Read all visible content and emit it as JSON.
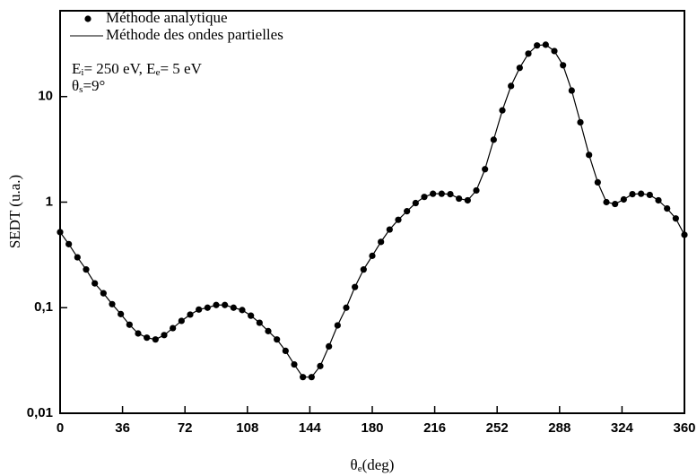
{
  "chart_data": {
    "type": "line",
    "x_label": [
      "θ",
      "e",
      "(deg)"
    ],
    "y_label": "SEDT (u.a.)",
    "annotations": [
      [
        "E",
        "i",
        "= 250 eV, E",
        "e",
        "= 5 eV"
      ],
      [
        "θ",
        "s",
        "=9°"
      ]
    ],
    "log_y": true,
    "x": [
      0,
      5,
      10,
      15,
      20,
      25,
      30,
      35,
      40,
      45,
      50,
      55,
      60,
      65,
      70,
      75,
      80,
      85,
      90,
      95,
      100,
      105,
      110,
      115,
      120,
      125,
      130,
      135,
      140,
      145,
      150,
      155,
      160,
      165,
      170,
      175,
      180,
      185,
      190,
      195,
      200,
      205,
      210,
      215,
      220,
      225,
      230,
      235,
      240,
      245,
      250,
      255,
      260,
      265,
      270,
      275,
      280,
      285,
      290,
      295,
      300,
      305,
      310,
      315,
      320,
      325,
      330,
      335,
      340,
      345,
      350,
      355,
      360
    ],
    "series": [
      {
        "name": "Méthode analytique",
        "style": "markers",
        "color": "#000000",
        "values": [
          0.52,
          0.4,
          0.3,
          0.23,
          0.17,
          0.137,
          0.108,
          0.087,
          0.069,
          0.057,
          0.052,
          0.05,
          0.055,
          0.064,
          0.075,
          0.086,
          0.096,
          0.1,
          0.106,
          0.106,
          0.1,
          0.095,
          0.084,
          0.072,
          0.06,
          0.05,
          0.039,
          0.029,
          0.022,
          0.022,
          0.028,
          0.043,
          0.068,
          0.1,
          0.157,
          0.23,
          0.31,
          0.42,
          0.55,
          0.68,
          0.82,
          0.98,
          1.12,
          1.2,
          1.2,
          1.19,
          1.08,
          1.04,
          1.29,
          2.05,
          3.9,
          7.4,
          12.6,
          18.7,
          25.5,
          30.5,
          31,
          27,
          19.8,
          11.4,
          5.7,
          2.8,
          1.54,
          1.0,
          0.96,
          1.06,
          1.19,
          1.2,
          1.17,
          1.04,
          0.87,
          0.7,
          0.49
        ]
      },
      {
        "name": "Méthode des ondes partielles",
        "style": "line",
        "color": "#000000",
        "values": [
          0.52,
          0.4,
          0.3,
          0.23,
          0.17,
          0.137,
          0.108,
          0.087,
          0.069,
          0.057,
          0.052,
          0.05,
          0.055,
          0.064,
          0.075,
          0.086,
          0.096,
          0.1,
          0.106,
          0.106,
          0.1,
          0.095,
          0.084,
          0.072,
          0.06,
          0.05,
          0.039,
          0.029,
          0.022,
          0.022,
          0.028,
          0.043,
          0.068,
          0.1,
          0.157,
          0.23,
          0.31,
          0.42,
          0.55,
          0.68,
          0.82,
          0.98,
          1.12,
          1.2,
          1.2,
          1.19,
          1.08,
          1.04,
          1.29,
          2.05,
          3.9,
          7.4,
          12.6,
          18.7,
          25.5,
          30.5,
          31,
          27,
          19.8,
          11.4,
          5.7,
          2.8,
          1.54,
          1.0,
          0.96,
          1.06,
          1.19,
          1.2,
          1.17,
          1.04,
          0.87,
          0.7,
          0.49
        ]
      }
    ],
    "xlim": [
      0,
      360
    ],
    "xticks": [
      0,
      36,
      72,
      108,
      144,
      180,
      216,
      252,
      288,
      324,
      360
    ],
    "ylim": [
      0.01,
      65
    ],
    "yticks": [
      {
        "value": 0.01,
        "label": "0,01"
      },
      {
        "value": 0.1,
        "label": "0,1"
      },
      1,
      10
    ]
  }
}
